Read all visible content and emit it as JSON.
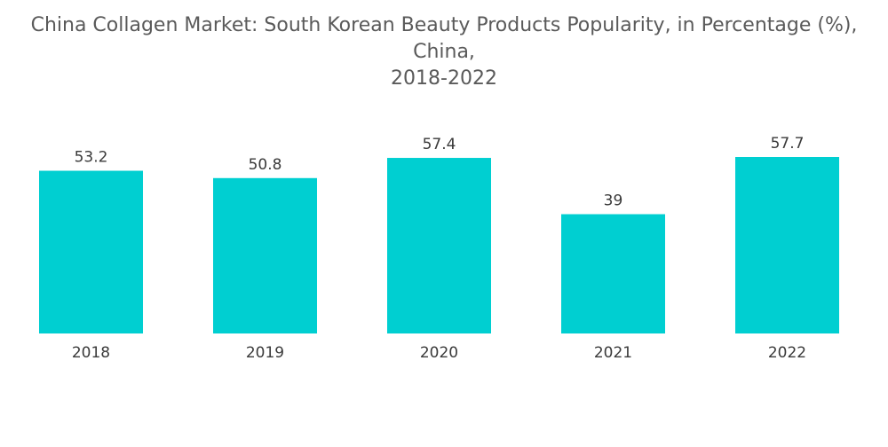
{
  "chart_data": {
    "type": "bar",
    "title_line1": "China Collagen Market: South Korean Beauty Products Popularity, in Percentage (%), China,",
    "title_line2": "2018-2022",
    "categories": [
      "2018",
      "2019",
      "2020",
      "2021",
      "2022"
    ],
    "values": [
      53.2,
      50.8,
      57.4,
      39,
      57.7
    ],
    "value_labels": [
      "53.2",
      "50.8",
      "57.4",
      "39",
      "57.7"
    ],
    "xlabel": "",
    "ylabel": "",
    "ylim": [
      0,
      57.7
    ],
    "grid": false,
    "bar_color": "#00cfd1"
  }
}
